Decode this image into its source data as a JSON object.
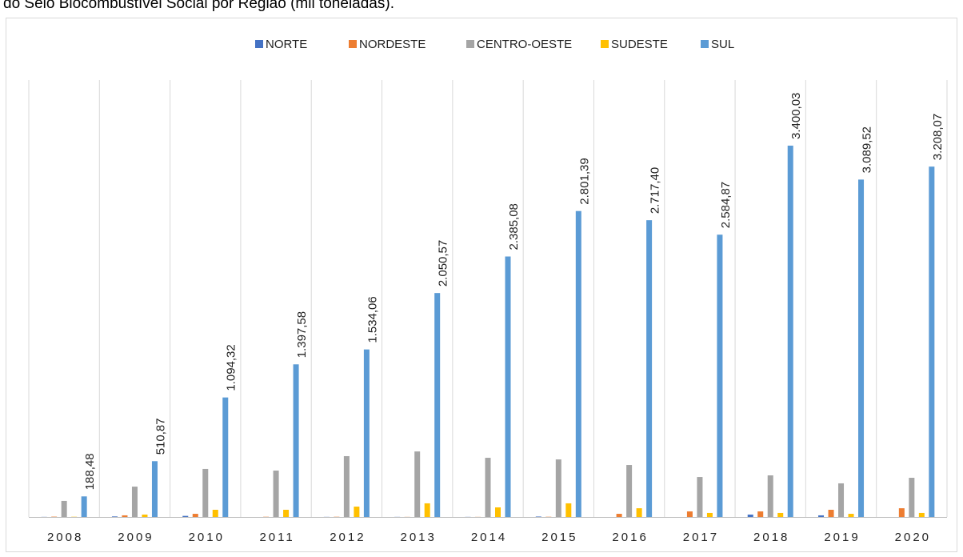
{
  "chart_data": {
    "type": "bar",
    "title": "do Selo Biocombustível Social por Região (mil toneladas).",
    "categories": [
      "2008",
      "2009",
      "2010",
      "2011",
      "2012",
      "2013",
      "2014",
      "2015",
      "2016",
      "2017",
      "2018",
      "2019",
      "2020"
    ],
    "series": [
      {
        "name": "NORTE",
        "color": "#4472c4",
        "values": [
          1,
          5,
          10,
          0,
          1,
          1,
          1,
          4,
          0,
          0,
          22,
          15,
          0
        ]
      },
      {
        "name": "NORDESTE",
        "color": "#ed7d31",
        "values": [
          3,
          15,
          29,
          2,
          2,
          1,
          1,
          2,
          29,
          51,
          51,
          66,
          80
        ]
      },
      {
        "name": "CENTRO-OESTE",
        "color": "#a5a5a5",
        "values": [
          147,
          278,
          440,
          425,
          557,
          600,
          542,
          527,
          476,
          366,
          381,
          308,
          359
        ]
      },
      {
        "name": "SUDESTE",
        "color": "#ffc000",
        "values": [
          2,
          22,
          66,
          66,
          95,
          125,
          88,
          125,
          80,
          37,
          37,
          29,
          37
        ]
      },
      {
        "name": "SUL",
        "color": "#5b9bd5",
        "values": [
          188.48,
          510.87,
          1094.32,
          1397.58,
          1534.06,
          2050.57,
          2385.08,
          2801.39,
          2717.4,
          2584.87,
          3400.03,
          3089.52,
          3208.07
        ],
        "value_labels": [
          "188,48",
          "510,87",
          "1.094,32",
          "1.397,58",
          "1.534,06",
          "2.050,57",
          "2.385,08",
          "2.801,39",
          "2.717,40",
          "2.584,87",
          "3.400,03",
          "3.089,52",
          "3.208,07"
        ]
      }
    ],
    "ylim": [
      0,
      4000
    ],
    "legend": "top"
  }
}
